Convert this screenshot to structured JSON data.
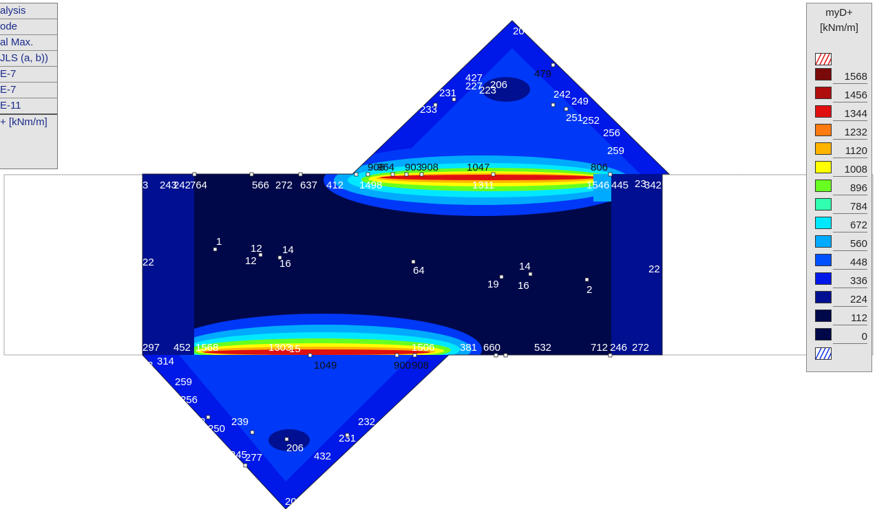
{
  "info_panel": {
    "rows": [
      "alysis",
      "ode",
      "al Max.",
      "JLS  (a, b))",
      "E-7",
      "E-7",
      "E-11",
      "+ [kNm/m]"
    ]
  },
  "legend": {
    "title": "myD+",
    "unit": "[kNm/m]",
    "entries": [
      {
        "value": "1568",
        "color": "#7a0a0a"
      },
      {
        "value": "1456",
        "color": "#b00d0d"
      },
      {
        "value": "1344",
        "color": "#e01010"
      },
      {
        "value": "1232",
        "color": "#ff7a10"
      },
      {
        "value": "1120",
        "color": "#ffb400"
      },
      {
        "value": "1008",
        "color": "#ffff00"
      },
      {
        "value": "896",
        "color": "#68ff20"
      },
      {
        "value": "784",
        "color": "#30ffb0"
      },
      {
        "value": "672",
        "color": "#00e8ff"
      },
      {
        "value": "560",
        "color": "#00aaff"
      },
      {
        "value": "448",
        "color": "#0050ff"
      },
      {
        "value": "336",
        "color": "#0018e8"
      },
      {
        "value": "224",
        "color": "#001090"
      },
      {
        "value": "112",
        "color": "#00084a"
      },
      {
        "value": "0",
        "color": "#00084a"
      }
    ]
  },
  "labels": {
    "top": [
      "20",
      "479",
      "427",
      "227",
      "223",
      "206",
      "231",
      "233",
      "242",
      "249",
      "251",
      "252",
      "256",
      "259",
      "906",
      "964",
      "903",
      "908",
      "1047",
      "806"
    ],
    "upper_band": [
      "3",
      "243",
      "242",
      "764",
      "566",
      "272",
      "637",
      "412",
      "1498",
      "1311",
      "1546",
      "445",
      "23",
      "342"
    ],
    "middle": [
      "22",
      "1",
      "12",
      "12",
      "14",
      "16",
      "64",
      "19",
      "14",
      "16",
      "2",
      "22"
    ],
    "lower_band": [
      "297",
      "452",
      "1568",
      "1303",
      "15",
      "1506",
      "381",
      "660",
      "532",
      "712",
      "246",
      "272",
      "1049",
      "900",
      "908",
      "314",
      "3"
    ],
    "bottom": [
      "259",
      "256",
      "2",
      "250",
      "239",
      "206",
      "232",
      "231",
      "432",
      "245",
      "277",
      "20"
    ]
  }
}
